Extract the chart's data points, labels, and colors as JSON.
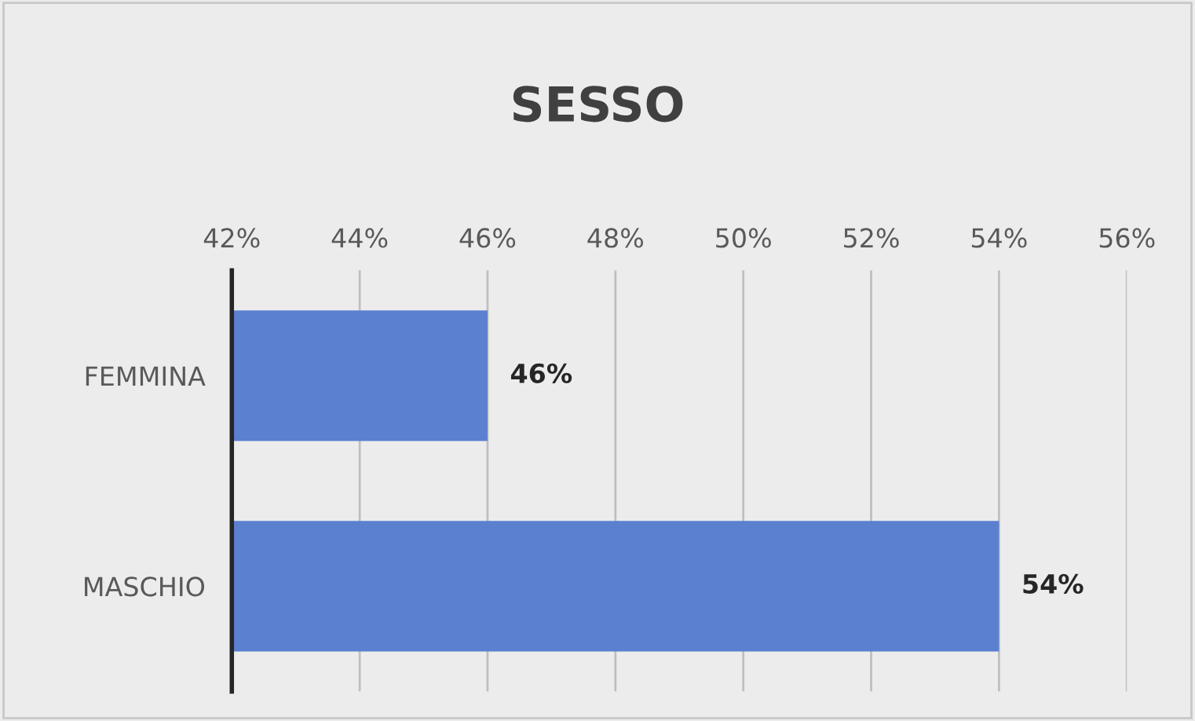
{
  "chart_data": {
    "type": "bar",
    "orientation": "horizontal",
    "title": "SESSO",
    "categories": [
      "FEMMINA",
      "MASCHIO"
    ],
    "values": [
      46,
      54
    ],
    "value_labels": [
      "46%",
      "54%"
    ],
    "color": "#5b80d0",
    "xlim": [
      42,
      56
    ],
    "xticks": [
      {
        "value": 42,
        "label": "42%"
      },
      {
        "value": 44,
        "label": "44%"
      },
      {
        "value": 46,
        "label": "46%"
      },
      {
        "value": 48,
        "label": "48%"
      },
      {
        "value": 50,
        "label": "50%"
      },
      {
        "value": 52,
        "label": "52%"
      },
      {
        "value": 54,
        "label": "54%"
      },
      {
        "value": 56,
        "label": "56%"
      }
    ],
    "grid": "x"
  }
}
